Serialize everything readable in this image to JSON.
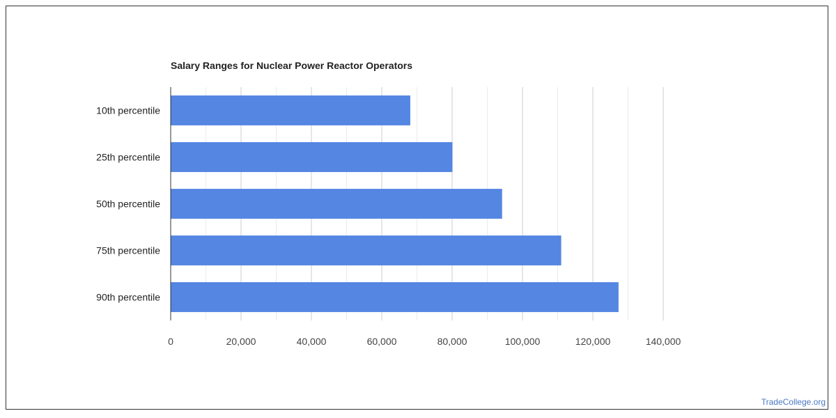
{
  "chart_data": {
    "type": "bar",
    "orientation": "horizontal",
    "title": "Salary Ranges for Nuclear Power Reactor Operators",
    "categories": [
      "10th percentile",
      "25th percentile",
      "50th percentile",
      "75th percentile",
      "90th percentile"
    ],
    "values": [
      68100,
      80100,
      94200,
      111000,
      127300
    ],
    "x_ticks": [
      "0",
      "20,000",
      "40,000",
      "60,000",
      "80,000",
      "100,000",
      "120,000",
      "140,000"
    ],
    "xlim": [
      0,
      140000
    ],
    "xlabel": "",
    "ylabel": "",
    "grid": true,
    "legend": "none",
    "bar_color": "#5486e2",
    "grid_color": "#cccccc",
    "minor_grid_color": "#ebebeb"
  },
  "watermark": "TradeCollege.org"
}
